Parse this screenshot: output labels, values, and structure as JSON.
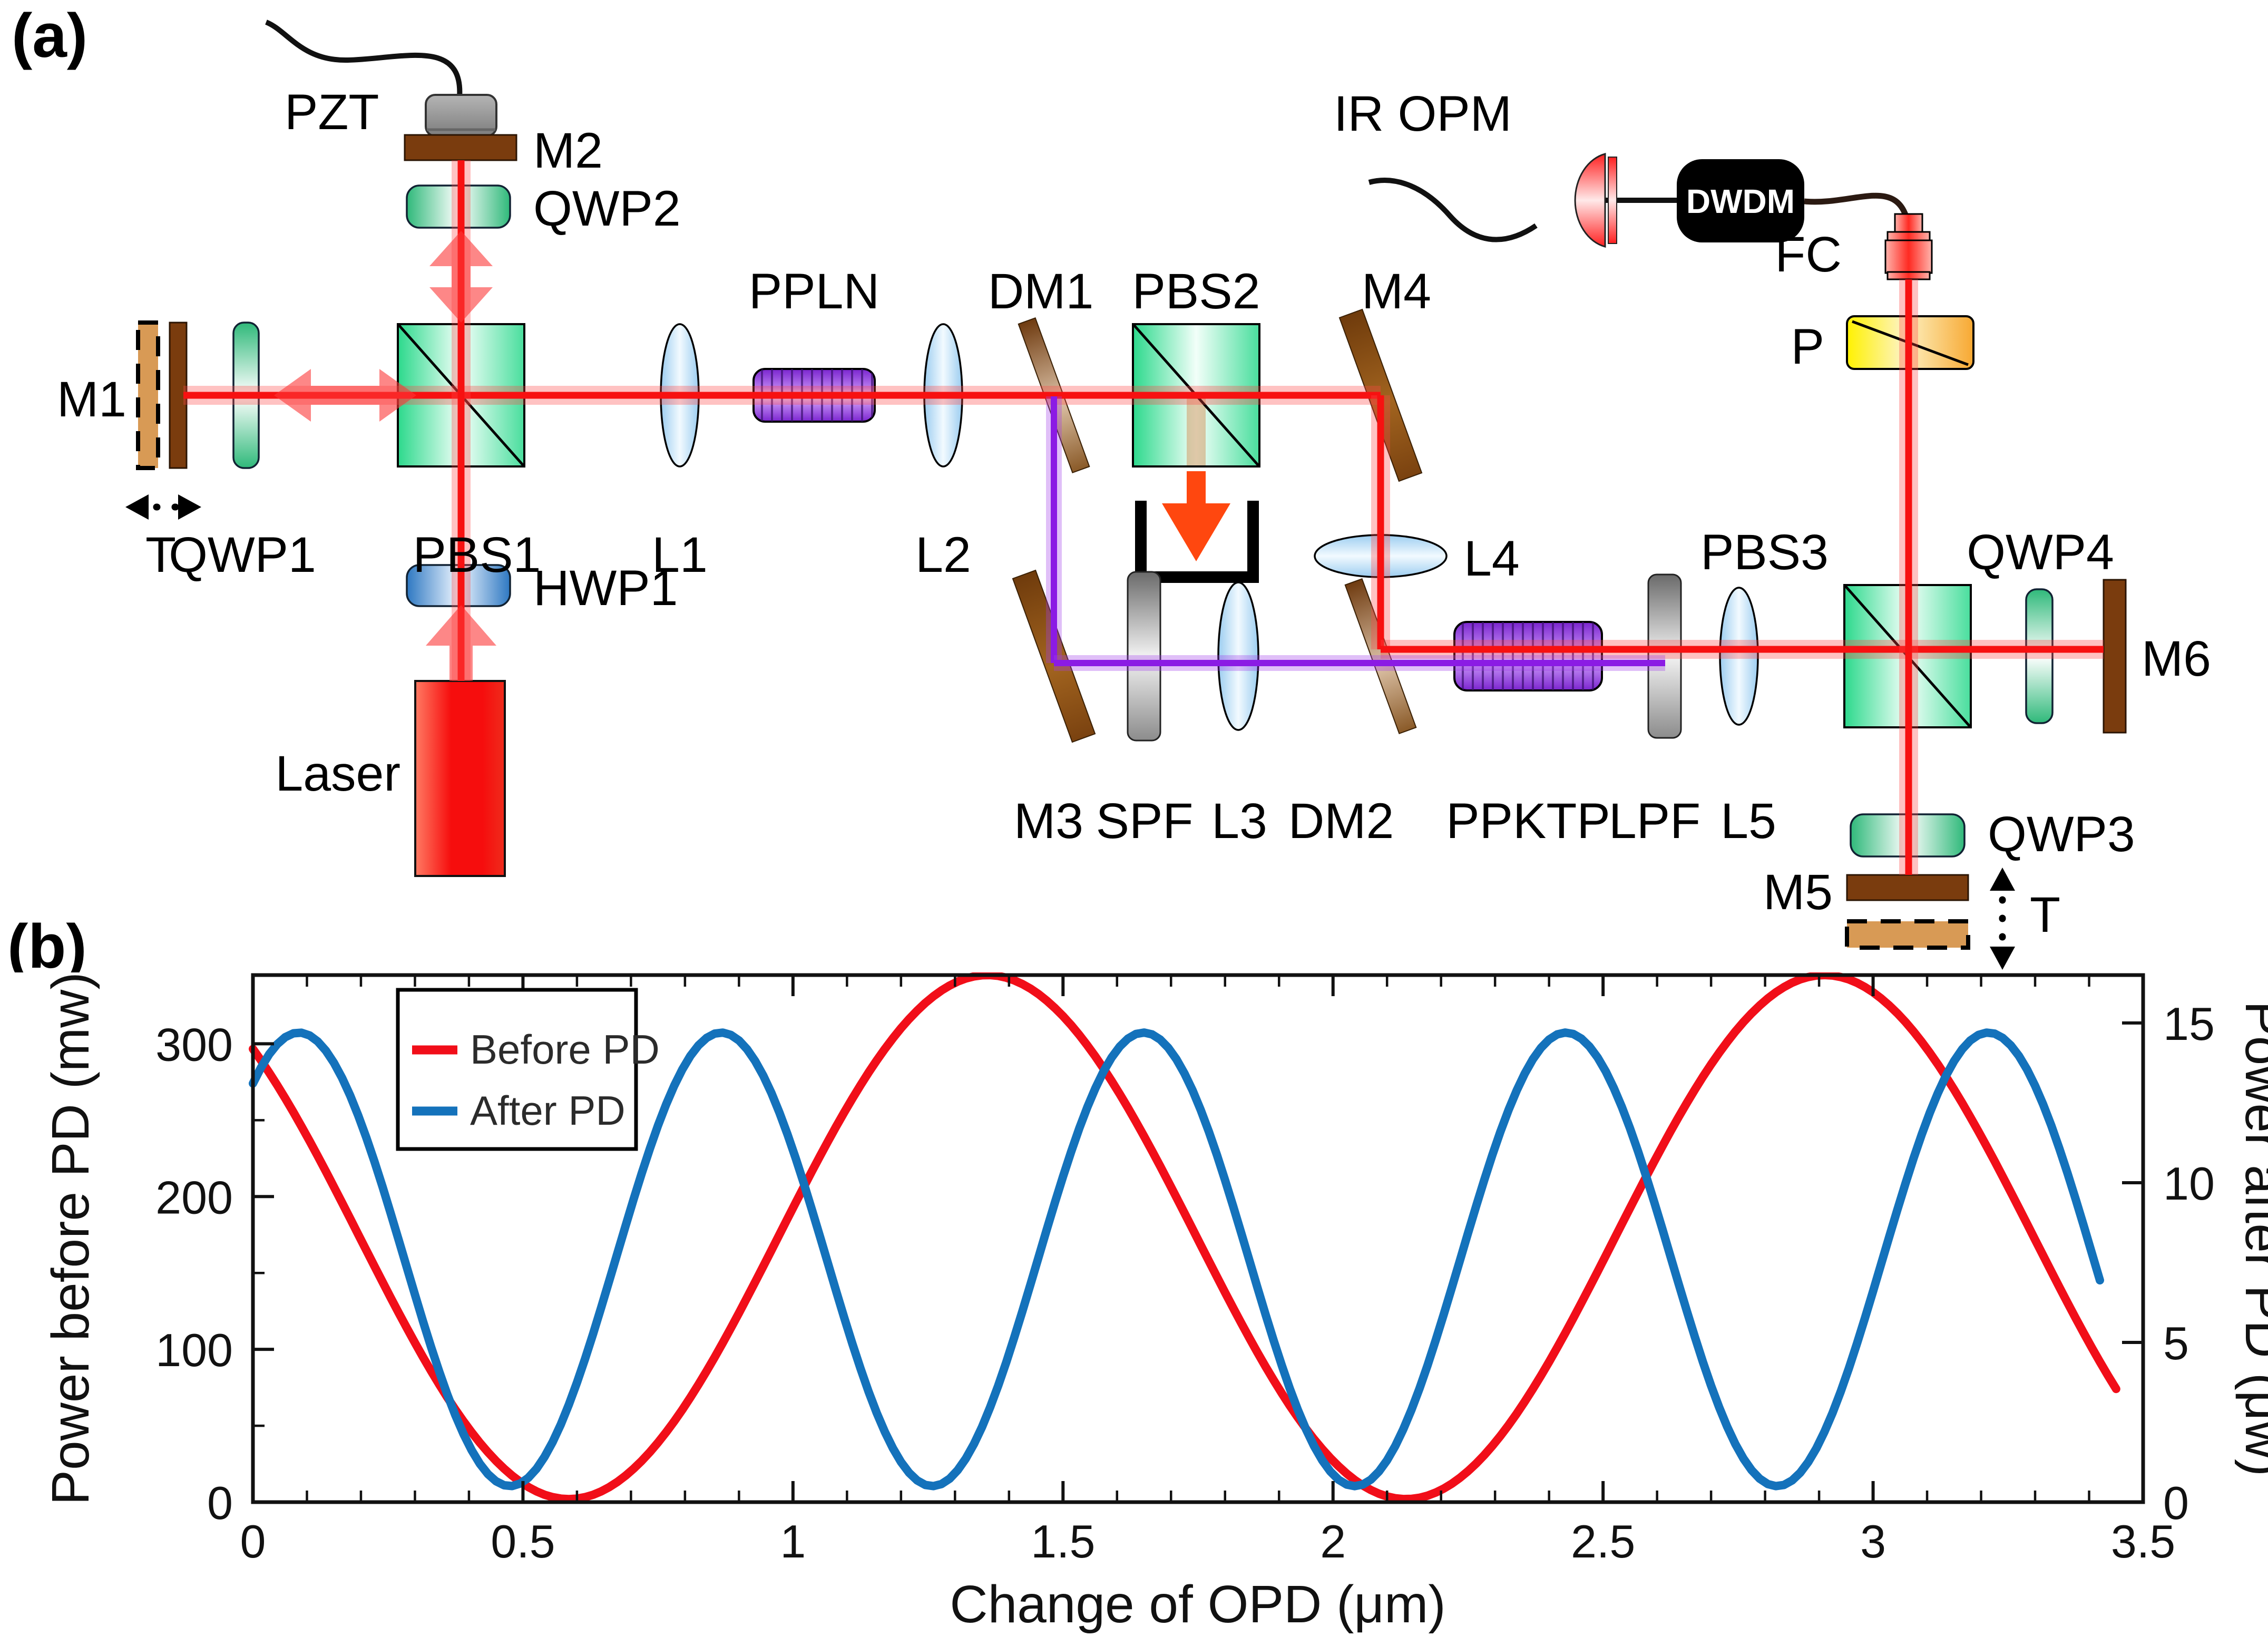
{
  "panel_a": {
    "tag": "(a)"
  },
  "panel_b": {
    "tag": "(b)"
  },
  "labels": {
    "pzt": "PZT",
    "m2": "M2",
    "qwp2": "QWP2",
    "m1": "M1",
    "t_m1": "T",
    "qwp1": "QWP1",
    "pbs1": "PBS1",
    "hwp1": "HWP1",
    "laser": "Laser",
    "l1": "L1",
    "ppln": "PPLN",
    "l2": "L2",
    "dm1": "DM1",
    "pbs2": "PBS2",
    "m4": "M4",
    "l4": "L4",
    "ir_opm": "IR OPM",
    "dwdm": "DWDM",
    "fc": "FC",
    "p": "P",
    "pbs3": "PBS3",
    "qwp4": "QWP4",
    "m6": "M6",
    "m3": "M3",
    "spf": "SPF",
    "l3": "L3",
    "dm2": "DM2",
    "ppktp": "PPKTP",
    "lpf": "LPF",
    "l5": "L5",
    "qwp3": "QWP3",
    "m5": "M5",
    "t_m5": "T"
  },
  "chart_data": {
    "type": "line",
    "title": "",
    "xlabel": "Change of OPD (μm)",
    "ylabel_left": "Power before PD (mw)",
    "ylabel_right": "Power after PD (μw)",
    "xlim": [
      0,
      3.5
    ],
    "ylim_left": [
      0,
      345
    ],
    "ylim_right": [
      0,
      16.5
    ],
    "xticks": [
      0,
      0.5,
      1,
      1.5,
      2,
      2.5,
      3,
      3.5
    ],
    "x_minor_step": 0.1,
    "yticks_left": [
      0,
      100,
      200,
      300
    ],
    "y_left_minor_step": 50,
    "yticks_right": [
      0,
      5,
      10,
      15
    ],
    "grid": false,
    "legend_position": "upper-left",
    "legend": [
      "Before PD",
      "After PD"
    ],
    "series": [
      {
        "name": "Before PD",
        "axis": "left",
        "units": "mW",
        "color": "#f10e19",
        "model": {
          "type": "cosine",
          "mean": 173.5,
          "amplitude": 171.5,
          "period_um": 1.55,
          "peak_x": 1.36,
          "x_start": 0,
          "x_end": 3.45
        },
        "key_points": {
          "start": [
            0,
            297
          ],
          "minima_x": [
            0.59,
            2.14
          ],
          "maxima_x": [
            1.36,
            2.91
          ],
          "max_value": 345,
          "min_value": 2,
          "end": [
            3.45,
            85
          ]
        }
      },
      {
        "name": "After PD",
        "axis": "right",
        "units": "μW",
        "color": "#1472bb",
        "model": {
          "type": "cosine",
          "mean": 7.6,
          "amplitude": 7.1,
          "period_um": 0.782,
          "peak_x": 0.085,
          "x_start": 0,
          "x_end": 3.43
        },
        "key_points": {
          "start": [
            0,
            12.9
          ],
          "maxima_x": [
            0.085,
            0.87,
            1.65,
            2.43,
            3.21
          ],
          "minima_x": [
            0.48,
            1.26,
            2.04,
            2.82
          ],
          "max_value": 14.7,
          "min_value": 0.5,
          "end": [
            3.43,
            5.9
          ]
        }
      }
    ]
  }
}
